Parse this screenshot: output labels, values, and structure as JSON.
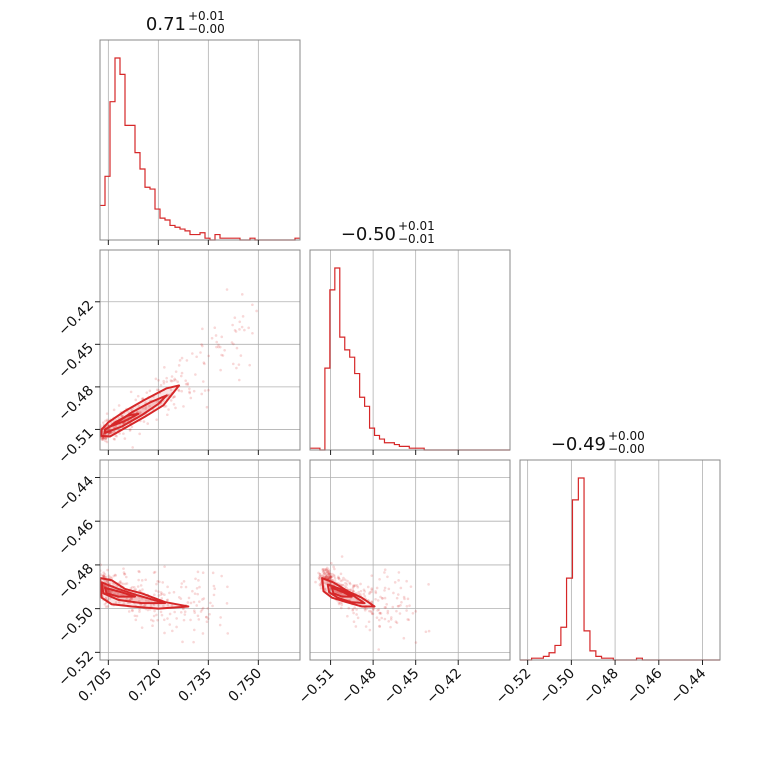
{
  "chart_data": {
    "type": "scatter",
    "kind": "corner-plot",
    "color": "#d62728",
    "parameters": [
      {
        "title": {
          "main": "0.71",
          "sup": "+0.01",
          "sub": "−0.00"
        },
        "range": [
          0.7025,
          0.7625
        ],
        "ticks": [
          0.705,
          0.72,
          0.735,
          0.75
        ],
        "tick_labels": [
          "0.705",
          "0.720",
          "0.735",
          "0.750"
        ],
        "hist_x": [
          0.7025,
          0.704,
          0.7055,
          0.707,
          0.7085,
          0.71,
          0.7115,
          0.713,
          0.7145,
          0.716,
          0.7175,
          0.719,
          0.7205,
          0.722,
          0.7235,
          0.725,
          0.7265,
          0.728,
          0.7295,
          0.731,
          0.7325,
          0.734,
          0.7355,
          0.737,
          0.7385,
          0.74,
          0.7415,
          0.743,
          0.7445,
          0.746,
          0.7475,
          0.749,
          0.7505,
          0.752,
          0.7535,
          0.755,
          0.7565,
          0.758,
          0.7595,
          0.761,
          0.7625
        ],
        "hist_y": [
          0.19,
          0.35,
          0.76,
          1.0,
          0.91,
          0.63,
          0.63,
          0.48,
          0.39,
          0.29,
          0.28,
          0.17,
          0.12,
          0.11,
          0.08,
          0.07,
          0.06,
          0.05,
          0.03,
          0.03,
          0.04,
          0.01,
          0.0,
          0.03,
          0.01,
          0.01,
          0.01,
          0.01,
          0.0,
          0.0,
          0.01,
          0.0,
          0.0,
          0.0,
          0.0,
          0.0,
          0.0,
          0.0,
          0.0,
          0.01
        ]
      },
      {
        "title": {
          "main": "−0.50",
          "sup": "+0.01",
          "sub": "−0.01"
        },
        "range": [
          -0.5245,
          -0.3835
        ],
        "ticks": [
          -0.51,
          -0.48,
          -0.45,
          -0.42
        ],
        "tick_labels": [
          "−0.51",
          "−0.48",
          "−0.45",
          "−0.42"
        ],
        "hist_x": [
          -0.5245,
          -0.521,
          -0.5175,
          -0.514,
          -0.5105,
          -0.507,
          -0.5035,
          -0.5,
          -0.4965,
          -0.493,
          -0.4895,
          -0.486,
          -0.4825,
          -0.479,
          -0.4755,
          -0.472,
          -0.4685,
          -0.465,
          -0.4615,
          -0.458,
          -0.4545,
          -0.451,
          -0.4475,
          -0.444,
          -0.4405,
          -0.437,
          -0.4335,
          -0.43,
          -0.4265,
          -0.423,
          -0.4195,
          -0.416,
          -0.4125,
          -0.409,
          -0.4055,
          -0.402,
          -0.3985,
          -0.395,
          -0.3915,
          -0.388,
          -0.3835
        ],
        "hist_y": [
          0.01,
          0.01,
          0.0,
          0.45,
          0.88,
          1.0,
          0.62,
          0.55,
          0.51,
          0.42,
          0.29,
          0.24,
          0.12,
          0.08,
          0.06,
          0.04,
          0.04,
          0.03,
          0.02,
          0.02,
          0.01,
          0.01,
          0.01,
          0.0,
          0.0,
          0.0,
          0.0,
          0.0,
          0.0,
          0.0,
          0.0,
          0.0,
          0.0,
          0.0,
          0.0,
          0.0,
          0.0,
          0.0,
          0.0,
          0.0
        ]
      },
      {
        "title": {
          "main": "−0.49",
          "sup": "+0.00",
          "sub": "−0.00"
        },
        "range": [
          -0.5235,
          -0.432
        ],
        "ticks": [
          -0.52,
          -0.5,
          -0.48,
          -0.46,
          -0.44
        ],
        "tick_labels": [
          "−0.52",
          "−0.50",
          "−0.48",
          "−0.46",
          "−0.44"
        ],
        "hist_x": [
          -0.5235,
          -0.5208,
          -0.5182,
          -0.5155,
          -0.5128,
          -0.5102,
          -0.5075,
          -0.5048,
          -0.5022,
          -0.4995,
          -0.4968,
          -0.4942,
          -0.4915,
          -0.4888,
          -0.4862,
          -0.4835,
          -0.4808,
          -0.4782,
          -0.4755,
          -0.4728,
          -0.4702,
          -0.4675,
          -0.4648,
          -0.4622,
          -0.4595,
          -0.4568,
          -0.4542,
          -0.4515,
          -0.4488,
          -0.4462,
          -0.4435,
          -0.4408,
          -0.4382,
          -0.4355,
          -0.432
        ],
        "hist_y": [
          0.0,
          0.0,
          0.01,
          0.01,
          0.02,
          0.04,
          0.08,
          0.18,
          0.45,
          0.88,
          1.0,
          0.16,
          0.05,
          0.02,
          0.01,
          0.01,
          0.0,
          0.0,
          0.0,
          0.0,
          0.01,
          0.0,
          0.0,
          0.0,
          0.0,
          0.0,
          0.0,
          0.0,
          0.0,
          0.0,
          0.0,
          0.0,
          0.0,
          0.0
        ]
      }
    ],
    "scatter_panels": [
      {
        "x_param": 0,
        "y_param": 1,
        "ridge": [
          [
            0.703,
            -0.513
          ],
          [
            0.708,
            -0.508
          ],
          [
            0.712,
            -0.5
          ],
          [
            0.716,
            -0.495
          ],
          [
            0.722,
            -0.486
          ],
          [
            0.726,
            -0.481
          ],
          [
            0.732,
            -0.468
          ],
          [
            0.74,
            -0.45
          ],
          [
            0.746,
            -0.435
          ]
        ],
        "spread": [
          0.0007,
          0.003
        ],
        "contours": [
          [
            [
              0.7028,
              -0.5145
            ],
            [
              0.7055,
              -0.515
            ],
            [
              0.71,
              -0.509
            ],
            [
              0.716,
              -0.501
            ],
            [
              0.7215,
              -0.493
            ],
            [
              0.7262,
              -0.479
            ],
            [
              0.7225,
              -0.481
            ],
            [
              0.716,
              -0.489
            ],
            [
              0.71,
              -0.497
            ],
            [
              0.705,
              -0.505
            ],
            [
              0.703,
              -0.51
            ]
          ],
          [
            [
              0.704,
              -0.5125
            ],
            [
              0.709,
              -0.508
            ],
            [
              0.715,
              -0.5
            ],
            [
              0.72,
              -0.492
            ],
            [
              0.7225,
              -0.486
            ],
            [
              0.7175,
              -0.491
            ],
            [
              0.712,
              -0.498
            ],
            [
              0.707,
              -0.506
            ],
            [
              0.704,
              -0.51
            ]
          ],
          [
            [
              0.7055,
              -0.508
            ],
            [
              0.71,
              -0.504
            ],
            [
              0.714,
              -0.499
            ],
            [
              0.711,
              -0.5
            ],
            [
              0.707,
              -0.505
            ]
          ]
        ]
      },
      {
        "x_param": 0,
        "y_param": 2,
        "ridge": [
          [
            0.703,
            -0.489
          ],
          [
            0.708,
            -0.492
          ],
          [
            0.714,
            -0.495
          ],
          [
            0.72,
            -0.497
          ],
          [
            0.726,
            -0.499
          ],
          [
            0.733,
            -0.5
          ],
          [
            0.74,
            -0.501
          ]
        ],
        "spread": [
          0.0007,
          0.003
        ],
        "contours": [
          [
            [
              0.7025,
              -0.486
            ],
            [
              0.706,
              -0.487
            ],
            [
              0.71,
              -0.491
            ],
            [
              0.715,
              -0.493
            ],
            [
              0.722,
              -0.497
            ],
            [
              0.729,
              -0.499
            ],
            [
              0.72,
              -0.5
            ],
            [
              0.712,
              -0.499
            ],
            [
              0.706,
              -0.498
            ],
            [
              0.703,
              -0.495
            ]
          ],
          [
            [
              0.703,
              -0.488
            ],
            [
              0.708,
              -0.491
            ],
            [
              0.714,
              -0.494
            ],
            [
              0.722,
              -0.4975
            ],
            [
              0.715,
              -0.4975
            ],
            [
              0.708,
              -0.496
            ],
            [
              0.7035,
              -0.493
            ]
          ],
          [
            [
              0.704,
              -0.4905
            ],
            [
              0.709,
              -0.4925
            ],
            [
              0.713,
              -0.4945
            ],
            [
              0.708,
              -0.4945
            ],
            [
              0.7045,
              -0.493
            ]
          ]
        ]
      },
      {
        "x_param": 1,
        "y_param": 2,
        "ridge": [
          [
            -0.514,
            -0.485
          ],
          [
            -0.505,
            -0.49
          ],
          [
            -0.496,
            -0.493
          ],
          [
            -0.487,
            -0.496
          ],
          [
            -0.478,
            -0.499
          ],
          [
            -0.465,
            -0.5
          ],
          [
            -0.45,
            -0.501
          ]
        ],
        "spread": [
          0.0025,
          0.0025
        ],
        "contours": [
          [
            [
              -0.516,
              -0.486
            ],
            [
              -0.508,
              -0.488
            ],
            [
              -0.498,
              -0.492
            ],
            [
              -0.488,
              -0.495
            ],
            [
              -0.479,
              -0.499
            ],
            [
              -0.488,
              -0.499
            ],
            [
              -0.499,
              -0.497
            ],
            [
              -0.509,
              -0.495
            ],
            [
              -0.515,
              -0.492
            ]
          ],
          [
            [
              -0.512,
              -0.489
            ],
            [
              -0.503,
              -0.491
            ],
            [
              -0.494,
              -0.494
            ],
            [
              -0.486,
              -0.4975
            ],
            [
              -0.496,
              -0.497
            ],
            [
              -0.505,
              -0.495
            ],
            [
              -0.511,
              -0.4925
            ]
          ],
          [
            [
              -0.509,
              -0.4905
            ],
            [
              -0.501,
              -0.4925
            ],
            [
              -0.495,
              -0.4945
            ],
            [
              -0.502,
              -0.4945
            ],
            [
              -0.508,
              -0.493
            ]
          ]
        ]
      }
    ]
  }
}
